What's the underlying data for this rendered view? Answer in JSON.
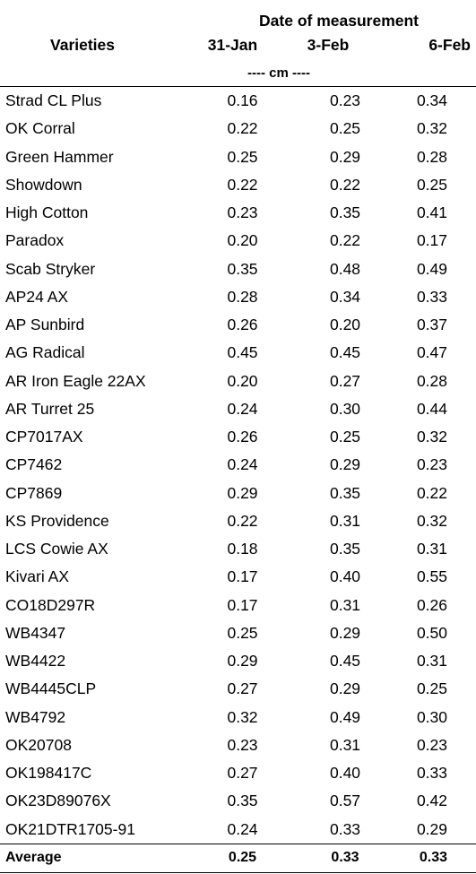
{
  "table": {
    "group_header": "Date of measurement",
    "col_variety": "Varieties",
    "dates": [
      "31-Jan",
      "3-Feb",
      "6-Feb"
    ],
    "unit": "---- cm ----",
    "rows": [
      {
        "variety": "Strad CL Plus",
        "values": [
          "0.16",
          "0.23",
          "0.34"
        ]
      },
      {
        "variety": "OK Corral",
        "values": [
          "0.22",
          "0.25",
          "0.32"
        ]
      },
      {
        "variety": "Green Hammer",
        "values": [
          "0.25",
          "0.29",
          "0.28"
        ]
      },
      {
        "variety": "Showdown",
        "values": [
          "0.22",
          "0.22",
          "0.25"
        ]
      },
      {
        "variety": "High Cotton",
        "values": [
          "0.23",
          "0.35",
          "0.41"
        ]
      },
      {
        "variety": "Paradox",
        "values": [
          "0.20",
          "0.22",
          "0.17"
        ]
      },
      {
        "variety": "Scab Stryker",
        "values": [
          "0.35",
          "0.48",
          "0.49"
        ]
      },
      {
        "variety": "AP24 AX",
        "values": [
          "0.28",
          "0.34",
          "0.33"
        ]
      },
      {
        "variety": "AP Sunbird",
        "values": [
          "0.26",
          "0.20",
          "0.37"
        ]
      },
      {
        "variety": "AG Radical",
        "values": [
          "0.45",
          "0.45",
          "0.47"
        ]
      },
      {
        "variety": "AR Iron Eagle 22AX",
        "values": [
          "0.20",
          "0.27",
          "0.28"
        ]
      },
      {
        "variety": "AR Turret 25",
        "values": [
          "0.24",
          "0.30",
          "0.44"
        ]
      },
      {
        "variety": "CP7017AX",
        "values": [
          "0.26",
          "0.25",
          "0.32"
        ]
      },
      {
        "variety": "CP7462",
        "values": [
          "0.24",
          "0.29",
          "0.23"
        ]
      },
      {
        "variety": "CP7869",
        "values": [
          "0.29",
          "0.35",
          "0.22"
        ]
      },
      {
        "variety": "KS Providence",
        "values": [
          "0.22",
          "0.31",
          "0.32"
        ]
      },
      {
        "variety": "LCS Cowie AX",
        "values": [
          "0.18",
          "0.35",
          "0.31"
        ]
      },
      {
        "variety": "Kivari AX",
        "values": [
          "0.17",
          "0.40",
          "0.55"
        ]
      },
      {
        "variety": "CO18D297R",
        "values": [
          "0.17",
          "0.31",
          "0.26"
        ]
      },
      {
        "variety": "WB4347",
        "values": [
          "0.25",
          "0.29",
          "0.50"
        ]
      },
      {
        "variety": "WB4422",
        "values": [
          "0.29",
          "0.45",
          "0.31"
        ]
      },
      {
        "variety": "WB4445CLP",
        "values": [
          "0.27",
          "0.29",
          "0.25"
        ]
      },
      {
        "variety": "WB4792",
        "values": [
          "0.32",
          "0.49",
          "0.30"
        ]
      },
      {
        "variety": "OK20708",
        "values": [
          "0.23",
          "0.31",
          "0.23"
        ]
      },
      {
        "variety": "OK198417C",
        "values": [
          "0.27",
          "0.40",
          "0.33"
        ]
      },
      {
        "variety": "OK23D89076X",
        "values": [
          "0.35",
          "0.57",
          "0.42"
        ]
      },
      {
        "variety": "OK21DTR1705-91",
        "values": [
          "0.24",
          "0.33",
          "0.29"
        ]
      }
    ],
    "average": {
      "label": "Average",
      "values": [
        "0.25",
        "0.33",
        "0.33"
      ]
    }
  }
}
